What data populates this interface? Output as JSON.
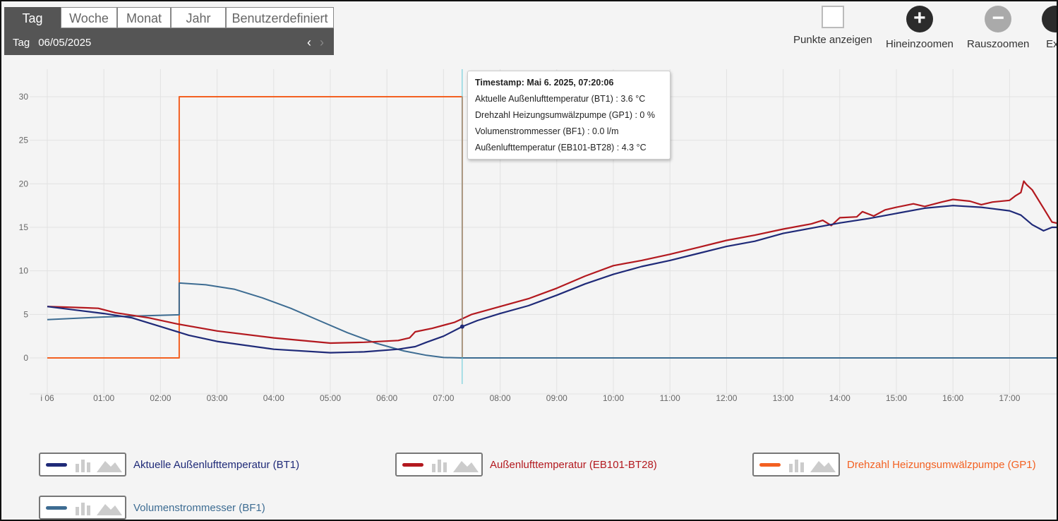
{
  "period": {
    "tabs": [
      "Tag",
      "Woche",
      "Monat",
      "Jahr",
      "Benutzerdefiniert"
    ],
    "active": "Tag",
    "date_label": "Tag",
    "date": "06/05/2025",
    "prev": "‹",
    "next": "›"
  },
  "tools": {
    "points": "Punkte anzeigen",
    "zoom_in": "Hineinzoomen",
    "zoom_in_icon": "+",
    "zoom_out": "Rauszoomen",
    "zoom_out_icon": "−",
    "export": "Exp"
  },
  "tooltip": {
    "timestamp": "Timestamp: Mai 6. 2025, 07:20:06",
    "rows": [
      "Aktuelle Außenlufttemperatur (BT1) : 3.6 °C",
      "Drehzahl Heizungsumwälzpumpe (GP1) : 0 %",
      "Volumenstrommesser (BF1) : 0.0 l/m",
      "Außenlufttemperatur (EB101-BT28) : 4.3 °C"
    ]
  },
  "legend": [
    {
      "label": "Aktuelle Außenlufttemperatur (BT1)",
      "color": "#1f2a78"
    },
    {
      "label": "Außenlufttemperatur (EB101-BT28)",
      "color": "#b3191f"
    },
    {
      "label": "Drehzahl Heizungsumwälzpumpe (GP1)",
      "color": "#f36021"
    },
    {
      "label": "Volumenstrommesser (BF1)",
      "color": "#3d6c92"
    }
  ],
  "chart_data": {
    "type": "line",
    "ylim": [
      -3,
      33
    ],
    "xlim": [
      0,
      17.9
    ],
    "yticks": [
      0,
      5,
      10,
      15,
      20,
      25,
      30
    ],
    "xticks": [
      {
        "v": 0,
        "t": "i 06"
      },
      {
        "v": 1,
        "t": "01:00"
      },
      {
        "v": 2,
        "t": "02:00"
      },
      {
        "v": 3,
        "t": "03:00"
      },
      {
        "v": 4,
        "t": "04:00"
      },
      {
        "v": 5,
        "t": "05:00"
      },
      {
        "v": 6,
        "t": "06:00"
      },
      {
        "v": 7,
        "t": "07:00"
      },
      {
        "v": 8,
        "t": "08:00"
      },
      {
        "v": 9,
        "t": "09:00"
      },
      {
        "v": 10,
        "t": "10:00"
      },
      {
        "v": 11,
        "t": "11:00"
      },
      {
        "v": 12,
        "t": "12:00"
      },
      {
        "v": 13,
        "t": "13:00"
      },
      {
        "v": 14,
        "t": "14:00"
      },
      {
        "v": 15,
        "t": "15:00"
      },
      {
        "v": 16,
        "t": "16:00"
      },
      {
        "v": 17,
        "t": "17:00"
      }
    ],
    "cursor_x": 7.33,
    "series": [
      {
        "name": "Drehzahl Heizungsumwälzpumpe (GP1)",
        "color": "#f36021",
        "width": 2,
        "points": [
          [
            0,
            0
          ],
          [
            2.33,
            0
          ],
          [
            2.33,
            30
          ],
          [
            7.33,
            30
          ],
          [
            7.33,
            0
          ],
          [
            17.9,
            0
          ]
        ]
      },
      {
        "name": "Volumenstrommesser (BF1)",
        "color": "#3d6c92",
        "width": 2,
        "points": [
          [
            0,
            4.4
          ],
          [
            1,
            4.7
          ],
          [
            2.33,
            4.95
          ],
          [
            2.33,
            8.6
          ],
          [
            2.8,
            8.4
          ],
          [
            3.3,
            7.9
          ],
          [
            3.8,
            6.9
          ],
          [
            4.3,
            5.7
          ],
          [
            4.8,
            4.3
          ],
          [
            5.3,
            2.9
          ],
          [
            5.8,
            1.7
          ],
          [
            6.3,
            0.8
          ],
          [
            6.7,
            0.3
          ],
          [
            7,
            0.05
          ],
          [
            7.33,
            0
          ],
          [
            17.9,
            0
          ]
        ]
      },
      {
        "name": "Außenlufttemperatur (EB101-BT28)",
        "color": "#b3191f",
        "width": 2.2,
        "points": [
          [
            0,
            5.9
          ],
          [
            0.5,
            5.8
          ],
          [
            0.9,
            5.7
          ],
          [
            1.2,
            5.2
          ],
          [
            1.8,
            4.6
          ],
          [
            2.3,
            3.9
          ],
          [
            3,
            3.1
          ],
          [
            4,
            2.3
          ],
          [
            5,
            1.7
          ],
          [
            5.6,
            1.8
          ],
          [
            6.2,
            2.0
          ],
          [
            6.4,
            2.3
          ],
          [
            6.5,
            3.0
          ],
          [
            6.8,
            3.4
          ],
          [
            7.2,
            4.1
          ],
          [
            7.5,
            5.0
          ],
          [
            8,
            5.9
          ],
          [
            8.5,
            6.8
          ],
          [
            9,
            8.0
          ],
          [
            9.5,
            9.4
          ],
          [
            10,
            10.6
          ],
          [
            10.5,
            11.2
          ],
          [
            11,
            11.9
          ],
          [
            11.5,
            12.7
          ],
          [
            12,
            13.5
          ],
          [
            12.5,
            14.1
          ],
          [
            13,
            14.8
          ],
          [
            13.5,
            15.4
          ],
          [
            13.7,
            15.8
          ],
          [
            13.85,
            15.2
          ],
          [
            14,
            16.1
          ],
          [
            14.3,
            16.2
          ],
          [
            14.4,
            16.8
          ],
          [
            14.6,
            16.3
          ],
          [
            14.8,
            17.0
          ],
          [
            15,
            17.3
          ],
          [
            15.3,
            17.7
          ],
          [
            15.5,
            17.4
          ],
          [
            15.8,
            17.9
          ],
          [
            16,
            18.2
          ],
          [
            16.3,
            18.0
          ],
          [
            16.5,
            17.6
          ],
          [
            16.7,
            17.9
          ],
          [
            17,
            18.1
          ],
          [
            17.1,
            18.6
          ],
          [
            17.2,
            19.0
          ],
          [
            17.25,
            20.3
          ],
          [
            17.3,
            19.9
          ],
          [
            17.4,
            19.3
          ],
          [
            17.6,
            17.2
          ],
          [
            17.75,
            15.6
          ],
          [
            17.9,
            15.4
          ]
        ]
      },
      {
        "name": "Aktuelle Außenlufttemperatur (BT1)",
        "color": "#1f2a78",
        "width": 2.2,
        "points": [
          [
            0,
            5.9
          ],
          [
            0.5,
            5.5
          ],
          [
            1,
            5.1
          ],
          [
            1.5,
            4.6
          ],
          [
            2,
            3.6
          ],
          [
            2.5,
            2.6
          ],
          [
            3,
            1.9
          ],
          [
            4,
            1.0
          ],
          [
            5,
            0.6
          ],
          [
            5.6,
            0.7
          ],
          [
            6.2,
            1.0
          ],
          [
            6.5,
            1.3
          ],
          [
            6.7,
            1.8
          ],
          [
            7,
            2.5
          ],
          [
            7.33,
            3.6
          ],
          [
            7.6,
            4.3
          ],
          [
            8,
            5.1
          ],
          [
            8.5,
            6.0
          ],
          [
            9,
            7.2
          ],
          [
            9.5,
            8.5
          ],
          [
            10,
            9.6
          ],
          [
            10.5,
            10.5
          ],
          [
            11,
            11.2
          ],
          [
            11.5,
            12.0
          ],
          [
            12,
            12.8
          ],
          [
            12.5,
            13.4
          ],
          [
            13,
            14.3
          ],
          [
            13.5,
            14.9
          ],
          [
            14,
            15.5
          ],
          [
            14.5,
            16.0
          ],
          [
            15,
            16.6
          ],
          [
            15.5,
            17.2
          ],
          [
            16,
            17.5
          ],
          [
            16.5,
            17.3
          ],
          [
            17,
            16.9
          ],
          [
            17.2,
            16.4
          ],
          [
            17.4,
            15.3
          ],
          [
            17.6,
            14.6
          ],
          [
            17.75,
            15.0
          ],
          [
            17.9,
            15.0
          ]
        ]
      }
    ]
  }
}
